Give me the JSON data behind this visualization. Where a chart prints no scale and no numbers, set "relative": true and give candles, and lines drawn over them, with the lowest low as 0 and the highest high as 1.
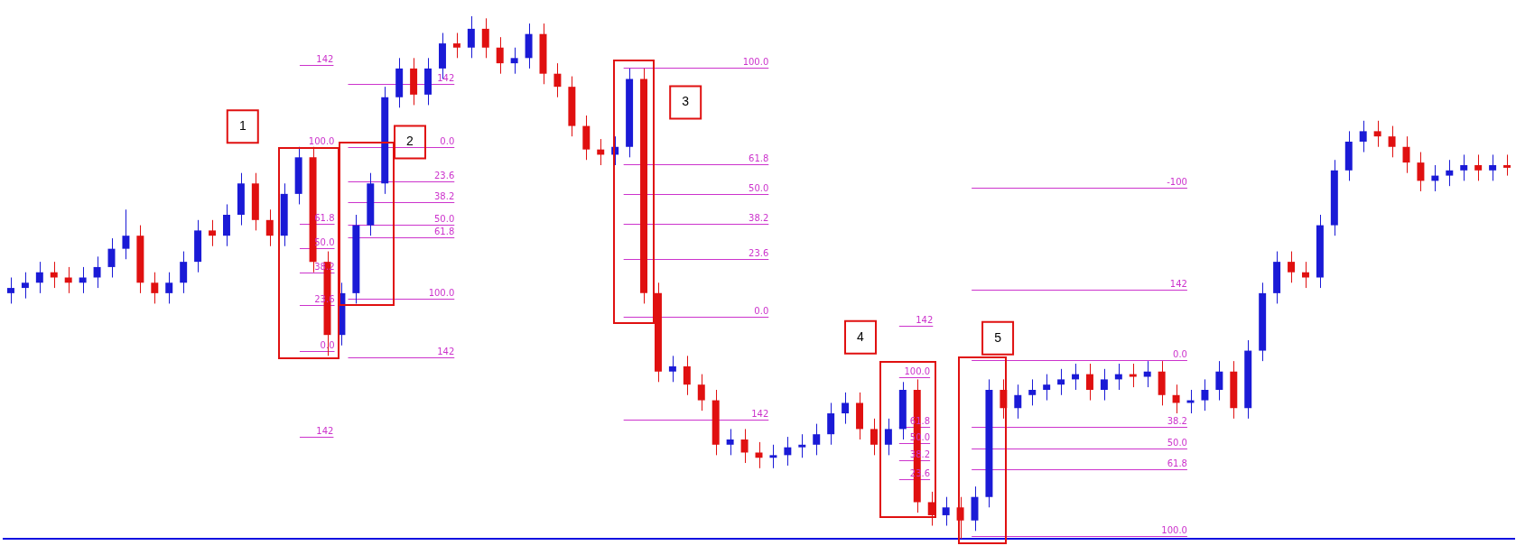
{
  "chart_data": {
    "type": "candlestick",
    "relative": true,
    "categories": [
      null,
      null,
      null,
      null,
      null,
      null,
      null,
      null,
      null,
      null,
      null,
      null,
      null,
      null,
      null,
      null,
      null,
      null,
      null,
      null,
      null,
      null,
      null,
      null,
      null,
      null,
      null,
      null,
      null,
      null,
      null,
      null,
      null,
      null,
      null,
      null,
      null,
      null,
      null,
      null,
      null,
      null,
      null,
      null,
      null,
      null,
      null,
      null,
      null,
      null,
      null,
      null,
      null,
      null,
      null,
      null,
      null,
      null,
      null,
      null,
      null,
      null,
      null,
      null,
      null,
      null,
      null,
      null,
      null,
      null,
      null,
      null,
      null,
      null,
      null,
      null,
      null,
      null,
      null,
      null,
      null,
      null,
      null,
      null,
      null,
      null,
      null,
      null,
      null,
      null,
      null,
      null,
      null,
      null,
      null,
      null,
      null,
      null,
      null,
      null,
      null,
      null,
      null,
      null,
      null
    ],
    "ohlc": [
      [
        0.47,
        0.5,
        0.45,
        0.48
      ],
      [
        0.48,
        0.51,
        0.46,
        0.49
      ],
      [
        0.49,
        0.53,
        0.47,
        0.51
      ],
      [
        0.51,
        0.53,
        0.48,
        0.5
      ],
      [
        0.5,
        0.52,
        0.47,
        0.49
      ],
      [
        0.49,
        0.52,
        0.47,
        0.5
      ],
      [
        0.5,
        0.54,
        0.48,
        0.52
      ],
      [
        0.52,
        0.575,
        0.5,
        0.555
      ],
      [
        0.555,
        0.63,
        0.535,
        0.58
      ],
      [
        0.58,
        0.6,
        0.47,
        0.49
      ],
      [
        0.49,
        0.51,
        0.45,
        0.47
      ],
      [
        0.47,
        0.51,
        0.45,
        0.49
      ],
      [
        0.49,
        0.55,
        0.47,
        0.53
      ],
      [
        0.53,
        0.61,
        0.51,
        0.59
      ],
      [
        0.59,
        0.61,
        0.56,
        0.58
      ],
      [
        0.58,
        0.64,
        0.56,
        0.62
      ],
      [
        0.62,
        0.7,
        0.6,
        0.68
      ],
      [
        0.68,
        0.7,
        0.59,
        0.61
      ],
      [
        0.61,
        0.63,
        0.56,
        0.58
      ],
      [
        0.58,
        0.68,
        0.56,
        0.66
      ],
      [
        0.66,
        0.75,
        0.64,
        0.73
      ],
      [
        0.73,
        0.75,
        0.51,
        0.53
      ],
      [
        0.53,
        0.55,
        0.35,
        0.39
      ],
      [
        0.39,
        0.49,
        0.37,
        0.47
      ],
      [
        0.47,
        0.62,
        0.45,
        0.6
      ],
      [
        0.6,
        0.7,
        0.58,
        0.68
      ],
      [
        0.68,
        0.865,
        0.66,
        0.845
      ],
      [
        0.845,
        0.92,
        0.825,
        0.9
      ],
      [
        0.9,
        0.92,
        0.83,
        0.85
      ],
      [
        0.85,
        0.92,
        0.83,
        0.9
      ],
      [
        0.9,
        0.968,
        0.88,
        0.948
      ],
      [
        0.948,
        0.968,
        0.92,
        0.94
      ],
      [
        0.94,
        1,
        0.92,
        0.976
      ],
      [
        0.976,
        0.996,
        0.92,
        0.94
      ],
      [
        0.94,
        0.96,
        0.89,
        0.91
      ],
      [
        0.91,
        0.94,
        0.89,
        0.92
      ],
      [
        0.92,
        0.986,
        0.9,
        0.966
      ],
      [
        0.966,
        0.986,
        0.87,
        0.89
      ],
      [
        0.89,
        0.91,
        0.845,
        0.865
      ],
      [
        0.865,
        0.885,
        0.77,
        0.79
      ],
      [
        0.79,
        0.81,
        0.725,
        0.745
      ],
      [
        0.745,
        0.765,
        0.715,
        0.735
      ],
      [
        0.735,
        0.77,
        0.715,
        0.75
      ],
      [
        0.75,
        0.9,
        0.73,
        0.88
      ],
      [
        0.88,
        0.9,
        0.45,
        0.47
      ],
      [
        0.47,
        0.49,
        0.3,
        0.32
      ],
      [
        0.32,
        0.35,
        0.3,
        0.33
      ],
      [
        0.33,
        0.35,
        0.275,
        0.295
      ],
      [
        0.295,
        0.315,
        0.245,
        0.265
      ],
      [
        0.265,
        0.285,
        0.16,
        0.18
      ],
      [
        0.18,
        0.21,
        0.16,
        0.19
      ],
      [
        0.19,
        0.21,
        0.145,
        0.165
      ],
      [
        0.165,
        0.185,
        0.135,
        0.155
      ],
      [
        0.155,
        0.18,
        0.135,
        0.16
      ],
      [
        0.16,
        0.195,
        0.14,
        0.175
      ],
      [
        0.175,
        0.2,
        0.155,
        0.18
      ],
      [
        0.18,
        0.22,
        0.16,
        0.2
      ],
      [
        0.2,
        0.26,
        0.18,
        0.24
      ],
      [
        0.24,
        0.28,
        0.22,
        0.26
      ],
      [
        0.26,
        0.28,
        0.19,
        0.21
      ],
      [
        0.21,
        0.23,
        0.16,
        0.18
      ],
      [
        0.18,
        0.23,
        0.16,
        0.21
      ],
      [
        0.21,
        0.3,
        0.19,
        0.285
      ],
      [
        0.285,
        0.305,
        0.05,
        0.07
      ],
      [
        0.07,
        0.09,
        0.025,
        0.045
      ],
      [
        0.045,
        0.08,
        0.025,
        0.06
      ],
      [
        0.06,
        0.08,
        0,
        0.035
      ],
      [
        0.035,
        0.1,
        0.015,
        0.08
      ],
      [
        0.08,
        0.305,
        0.06,
        0.285
      ],
      [
        0.285,
        0.305,
        0.23,
        0.25
      ],
      [
        0.25,
        0.295,
        0.23,
        0.275
      ],
      [
        0.275,
        0.305,
        0.255,
        0.285
      ],
      [
        0.285,
        0.315,
        0.265,
        0.295
      ],
      [
        0.295,
        0.325,
        0.275,
        0.305
      ],
      [
        0.305,
        0.335,
        0.285,
        0.315
      ],
      [
        0.315,
        0.335,
        0.265,
        0.285
      ],
      [
        0.285,
        0.325,
        0.265,
        0.305
      ],
      [
        0.305,
        0.335,
        0.285,
        0.315
      ],
      [
        0.315,
        0.335,
        0.29,
        0.31
      ],
      [
        0.31,
        0.34,
        0.29,
        0.32
      ],
      [
        0.32,
        0.34,
        0.255,
        0.275
      ],
      [
        0.275,
        0.295,
        0.24,
        0.26
      ],
      [
        0.26,
        0.285,
        0.24,
        0.265
      ],
      [
        0.265,
        0.305,
        0.245,
        0.285
      ],
      [
        0.285,
        0.34,
        0.265,
        0.32
      ],
      [
        0.32,
        0.34,
        0.23,
        0.25
      ],
      [
        0.25,
        0.38,
        0.23,
        0.36
      ],
      [
        0.36,
        0.49,
        0.34,
        0.47
      ],
      [
        0.47,
        0.55,
        0.45,
        0.53
      ],
      [
        0.53,
        0.55,
        0.49,
        0.51
      ],
      [
        0.51,
        0.53,
        0.48,
        0.5
      ],
      [
        0.5,
        0.62,
        0.48,
        0.6
      ],
      [
        0.6,
        0.725,
        0.58,
        0.705
      ],
      [
        0.705,
        0.78,
        0.685,
        0.76
      ],
      [
        0.76,
        0.8,
        0.74,
        0.78
      ],
      [
        0.78,
        0.8,
        0.75,
        0.77
      ],
      [
        0.77,
        0.79,
        0.73,
        0.75
      ],
      [
        0.75,
        0.77,
        0.7,
        0.72
      ],
      [
        0.72,
        0.74,
        0.665,
        0.685
      ],
      [
        0.685,
        0.715,
        0.665,
        0.695
      ],
      [
        0.695,
        0.725,
        0.675,
        0.705
      ],
      [
        0.705,
        0.735,
        0.685,
        0.715
      ],
      [
        0.715,
        0.735,
        0.685,
        0.705
      ],
      [
        0.705,
        0.735,
        0.685,
        0.715
      ],
      [
        0.715,
        0.735,
        0.695,
        0.71
      ]
    ],
    "annotations": [
      "1",
      "2",
      "3",
      "4",
      "5",
      "142",
      "100.0",
      "61.8",
      "50.0",
      "38.2",
      "23.6",
      "0.0",
      "142",
      "142",
      "0.0",
      "23.6",
      "38.2",
      "50.0",
      "61.8",
      "100.0",
      "142",
      "100.0",
      "61.8",
      "50.0",
      "38.2",
      "23.6",
      "0.0",
      "142",
      "142",
      "100.0",
      "61.8",
      "50.0",
      "38.2",
      "23.6",
      "-100",
      "142",
      "0.0",
      "38.2",
      "50.0",
      "61.8",
      "100.0"
    ]
  }
}
